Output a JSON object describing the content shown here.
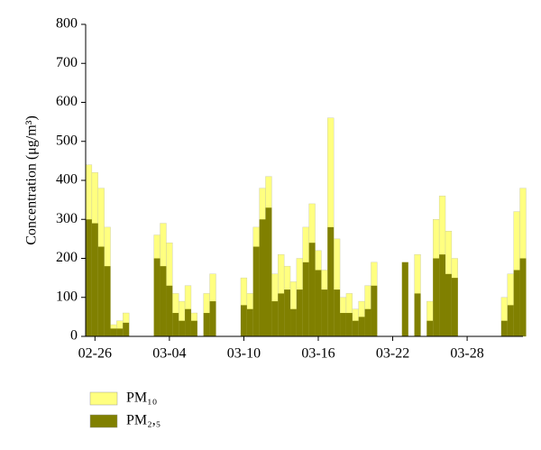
{
  "chart_data": {
    "type": "bar",
    "y_label": "Concentration (μg/m³)",
    "x": [
      -0.5,
      0,
      0.5,
      1,
      1.5,
      2,
      2.5,
      3,
      3.5,
      4,
      4.5,
      5,
      5.5,
      6,
      6.5,
      7,
      7.5,
      8,
      8.5,
      9,
      9.5,
      10,
      10.5,
      11,
      11.5,
      12,
      12.5,
      13,
      13.5,
      14,
      14.5,
      15,
      15.5,
      16,
      16.5,
      17,
      17.5,
      18,
      18.5,
      19,
      19.5,
      20,
      20.5,
      21,
      21.5,
      22,
      22.5,
      23,
      23.5,
      24,
      24.5,
      25,
      25.5,
      26,
      26.5,
      27,
      27.5,
      28,
      28.5,
      29,
      29.5,
      30,
      30.5,
      31,
      31.5,
      32,
      32.5,
      33,
      33.5,
      34,
      34.5
    ],
    "series": [
      {
        "name": "PM₁₀",
        "color": "#ffff80",
        "values": [
          440,
          420,
          380,
          280,
          30,
          40,
          60,
          null,
          null,
          null,
          null,
          260,
          290,
          240,
          110,
          90,
          130,
          60,
          null,
          110,
          160,
          null,
          null,
          null,
          null,
          150,
          110,
          280,
          380,
          410,
          160,
          210,
          180,
          140,
          200,
          280,
          340,
          220,
          170,
          560,
          250,
          100,
          110,
          70,
          90,
          130,
          190,
          null,
          null,
          null,
          null,
          190,
          null,
          210,
          null,
          90,
          300,
          360,
          270,
          200,
          null,
          null,
          null,
          null,
          null,
          null,
          null,
          100,
          160,
          320,
          380
        ]
      },
      {
        "name": "PM₂,₅",
        "color": "#808000",
        "values": [
          300,
          290,
          230,
          180,
          20,
          20,
          35,
          null,
          null,
          null,
          null,
          200,
          180,
          130,
          60,
          40,
          70,
          40,
          null,
          60,
          90,
          null,
          null,
          null,
          null,
          80,
          70,
          230,
          300,
          330,
          90,
          110,
          120,
          70,
          120,
          190,
          240,
          170,
          120,
          280,
          120,
          60,
          60,
          40,
          50,
          70,
          130,
          null,
          null,
          null,
          null,
          190,
          null,
          110,
          null,
          40,
          200,
          210,
          160,
          150,
          null,
          null,
          null,
          null,
          null,
          null,
          null,
          40,
          80,
          170,
          200
        ]
      }
    ],
    "xlim": [
      -0.75,
      34.5
    ],
    "xticks": [
      {
        "value": 0,
        "label": "02-26"
      },
      {
        "value": 6,
        "label": "03-04"
      },
      {
        "value": 12,
        "label": "03-10"
      },
      {
        "value": 18,
        "label": "03-16"
      },
      {
        "value": 24,
        "label": "03-22"
      },
      {
        "value": 30,
        "label": "03-28"
      }
    ],
    "ylim": [
      0,
      800
    ],
    "yticks": [
      0,
      100,
      200,
      300,
      400,
      500,
      600,
      700,
      800
    ],
    "legend": "bottom-left"
  }
}
